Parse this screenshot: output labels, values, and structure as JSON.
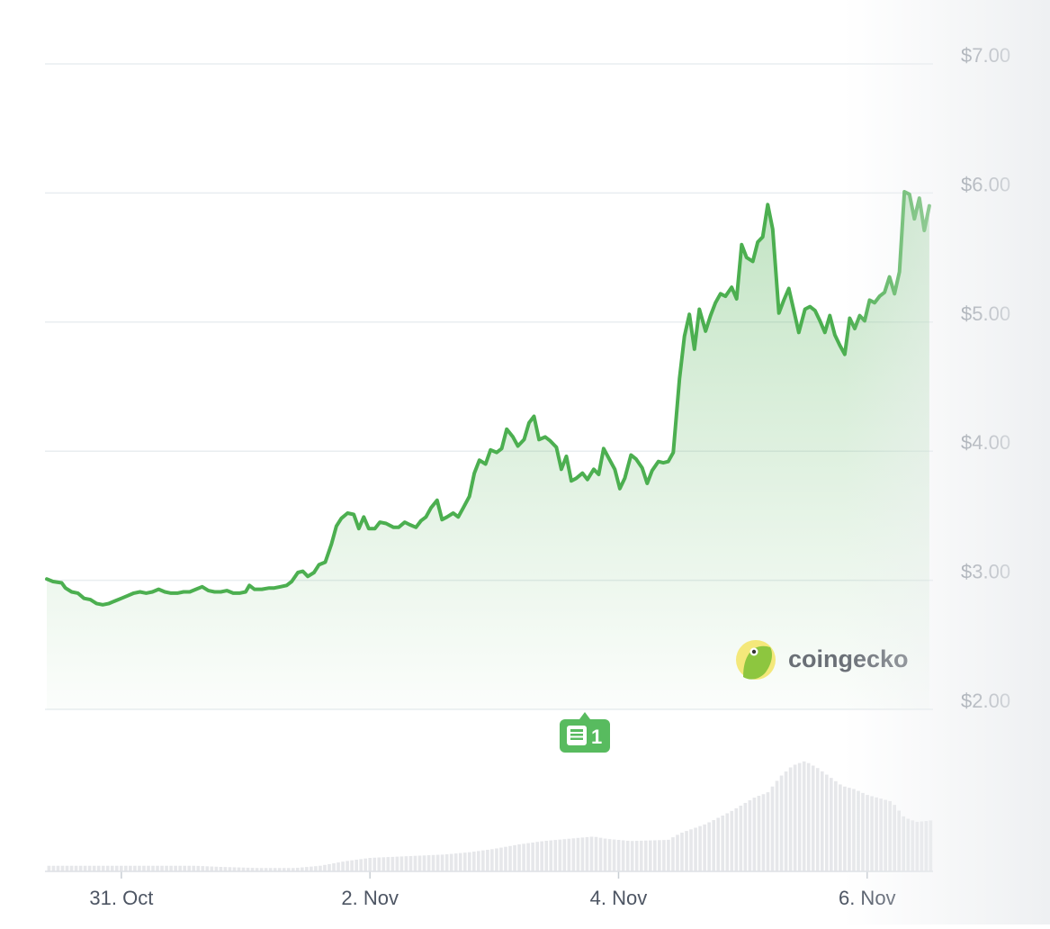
{
  "chart_data": {
    "type": "area",
    "y_range": [
      2,
      7
    ],
    "y_ticks": [
      {
        "value": 7,
        "label": "$7.00"
      },
      {
        "value": 6,
        "label": "$6.00"
      },
      {
        "value": 5,
        "label": "$5.00"
      },
      {
        "value": 4,
        "label": "$4.00"
      },
      {
        "value": 3,
        "label": "$3.00"
      },
      {
        "value": 2,
        "label": "$2.00"
      }
    ],
    "x_range": [
      0,
      7.13
    ],
    "x_ticks": [
      {
        "value": 0.6,
        "label": "31. Oct"
      },
      {
        "value": 2.6,
        "label": "2. Nov"
      },
      {
        "value": 4.6,
        "label": "4. Nov"
      },
      {
        "value": 6.6,
        "label": "6. Nov"
      }
    ],
    "grid": true,
    "line_color": "#4caf50",
    "price": [
      [
        0.0,
        3.01
      ],
      [
        0.05,
        2.99
      ],
      [
        0.12,
        2.98
      ],
      [
        0.15,
        2.94
      ],
      [
        0.2,
        2.91
      ],
      [
        0.25,
        2.9
      ],
      [
        0.3,
        2.86
      ],
      [
        0.35,
        2.85
      ],
      [
        0.4,
        2.82
      ],
      [
        0.45,
        2.81
      ],
      [
        0.5,
        2.82
      ],
      [
        0.55,
        2.84
      ],
      [
        0.6,
        2.86
      ],
      [
        0.65,
        2.88
      ],
      [
        0.7,
        2.9
      ],
      [
        0.75,
        2.91
      ],
      [
        0.8,
        2.9
      ],
      [
        0.85,
        2.91
      ],
      [
        0.9,
        2.93
      ],
      [
        0.95,
        2.91
      ],
      [
        1.0,
        2.9
      ],
      [
        1.05,
        2.9
      ],
      [
        1.1,
        2.91
      ],
      [
        1.15,
        2.91
      ],
      [
        1.2,
        2.93
      ],
      [
        1.25,
        2.95
      ],
      [
        1.3,
        2.92
      ],
      [
        1.35,
        2.91
      ],
      [
        1.4,
        2.91
      ],
      [
        1.45,
        2.92
      ],
      [
        1.5,
        2.9
      ],
      [
        1.55,
        2.9
      ],
      [
        1.6,
        2.91
      ],
      [
        1.63,
        2.96
      ],
      [
        1.67,
        2.93
      ],
      [
        1.73,
        2.93
      ],
      [
        1.79,
        2.94
      ],
      [
        1.83,
        2.94
      ],
      [
        1.88,
        2.95
      ],
      [
        1.93,
        2.96
      ],
      [
        1.97,
        2.99
      ],
      [
        2.02,
        3.06
      ],
      [
        2.06,
        3.07
      ],
      [
        2.1,
        3.03
      ],
      [
        2.15,
        3.06
      ],
      [
        2.19,
        3.12
      ],
      [
        2.24,
        3.14
      ],
      [
        2.29,
        3.28
      ],
      [
        2.33,
        3.42
      ],
      [
        2.37,
        3.48
      ],
      [
        2.42,
        3.52
      ],
      [
        2.47,
        3.51
      ],
      [
        2.51,
        3.4
      ],
      [
        2.55,
        3.49
      ],
      [
        2.59,
        3.4
      ],
      [
        2.64,
        3.4
      ],
      [
        2.68,
        3.45
      ],
      [
        2.73,
        3.44
      ],
      [
        2.79,
        3.41
      ],
      [
        2.83,
        3.41
      ],
      [
        2.88,
        3.45
      ],
      [
        2.92,
        3.43
      ],
      [
        2.97,
        3.41
      ],
      [
        3.01,
        3.46
      ],
      [
        3.05,
        3.49
      ],
      [
        3.09,
        3.56
      ],
      [
        3.14,
        3.62
      ],
      [
        3.18,
        3.47
      ],
      [
        3.22,
        3.49
      ],
      [
        3.27,
        3.52
      ],
      [
        3.31,
        3.49
      ],
      [
        3.35,
        3.56
      ],
      [
        3.4,
        3.65
      ],
      [
        3.44,
        3.83
      ],
      [
        3.48,
        3.93
      ],
      [
        3.53,
        3.9
      ],
      [
        3.57,
        4.01
      ],
      [
        3.62,
        3.99
      ],
      [
        3.66,
        4.02
      ],
      [
        3.7,
        4.17
      ],
      [
        3.75,
        4.11
      ],
      [
        3.79,
        4.04
      ],
      [
        3.84,
        4.09
      ],
      [
        3.88,
        4.22
      ],
      [
        3.92,
        4.27
      ],
      [
        3.96,
        4.09
      ],
      [
        4.01,
        4.11
      ],
      [
        4.05,
        4.08
      ],
      [
        4.1,
        4.03
      ],
      [
        4.14,
        3.86
      ],
      [
        4.18,
        3.96
      ],
      [
        4.22,
        3.77
      ],
      [
        4.26,
        3.79
      ],
      [
        4.31,
        3.83
      ],
      [
        4.35,
        3.78
      ],
      [
        4.4,
        3.86
      ],
      [
        4.44,
        3.82
      ],
      [
        4.48,
        4.02
      ],
      [
        4.53,
        3.93
      ],
      [
        4.57,
        3.86
      ],
      [
        4.61,
        3.71
      ],
      [
        4.65,
        3.79
      ],
      [
        4.7,
        3.97
      ],
      [
        4.74,
        3.94
      ],
      [
        4.79,
        3.87
      ],
      [
        4.83,
        3.75
      ],
      [
        4.87,
        3.85
      ],
      [
        4.92,
        3.92
      ],
      [
        4.96,
        3.91
      ],
      [
        5.0,
        3.92
      ],
      [
        5.04,
        3.99
      ],
      [
        5.09,
        4.56
      ],
      [
        5.13,
        4.89
      ],
      [
        5.17,
        5.06
      ],
      [
        5.21,
        4.79
      ],
      [
        5.25,
        5.1
      ],
      [
        5.3,
        4.93
      ],
      [
        5.34,
        5.05
      ],
      [
        5.38,
        5.15
      ],
      [
        5.42,
        5.22
      ],
      [
        5.46,
        5.2
      ],
      [
        5.51,
        5.27
      ],
      [
        5.55,
        5.18
      ],
      [
        5.59,
        5.6
      ],
      [
        5.63,
        5.5
      ],
      [
        5.68,
        5.47
      ],
      [
        5.72,
        5.62
      ],
      [
        5.76,
        5.66
      ],
      [
        5.8,
        5.91
      ],
      [
        5.84,
        5.72
      ],
      [
        5.89,
        5.07
      ],
      [
        5.93,
        5.17
      ],
      [
        5.97,
        5.26
      ],
      [
        6.01,
        5.09
      ],
      [
        6.05,
        4.92
      ],
      [
        6.1,
        5.1
      ],
      [
        6.14,
        5.12
      ],
      [
        6.18,
        5.09
      ],
      [
        6.22,
        5.01
      ],
      [
        6.26,
        4.92
      ],
      [
        6.3,
        5.05
      ],
      [
        6.34,
        4.9
      ],
      [
        6.38,
        4.82
      ],
      [
        6.42,
        4.75
      ],
      [
        6.46,
        5.03
      ],
      [
        6.5,
        4.95
      ],
      [
        6.54,
        5.05
      ],
      [
        6.58,
        5.01
      ],
      [
        6.62,
        5.17
      ],
      [
        6.66,
        5.15
      ],
      [
        6.7,
        5.2
      ],
      [
        6.74,
        5.23
      ],
      [
        6.78,
        5.35
      ],
      [
        6.82,
        5.22
      ],
      [
        6.86,
        5.39
      ],
      [
        6.9,
        6.01
      ],
      [
        6.94,
        5.99
      ],
      [
        6.98,
        5.8
      ],
      [
        7.02,
        5.96
      ],
      [
        7.06,
        5.71
      ],
      [
        7.1,
        5.9
      ],
      [
        7.14,
        6.03
      ],
      [
        7.18,
        5.7
      ],
      [
        7.22,
        5.99
      ],
      [
        7.26,
        6.16
      ],
      [
        7.3,
        5.88
      ]
    ],
    "volume": [
      [
        0.0,
        0.05
      ],
      [
        0.3,
        0.05
      ],
      [
        0.6,
        0.05
      ],
      [
        0.9,
        0.05
      ],
      [
        1.2,
        0.05
      ],
      [
        1.4,
        0.04
      ],
      [
        1.7,
        0.03
      ],
      [
        2.0,
        0.03
      ],
      [
        2.2,
        0.05
      ],
      [
        2.4,
        0.09
      ],
      [
        2.6,
        0.12
      ],
      [
        2.8,
        0.13
      ],
      [
        3.0,
        0.14
      ],
      [
        3.2,
        0.15
      ],
      [
        3.4,
        0.17
      ],
      [
        3.6,
        0.2
      ],
      [
        3.8,
        0.24
      ],
      [
        4.0,
        0.27
      ],
      [
        4.2,
        0.29
      ],
      [
        4.4,
        0.31
      ],
      [
        4.5,
        0.29
      ],
      [
        4.7,
        0.27
      ],
      [
        5.0,
        0.28
      ],
      [
        5.1,
        0.34
      ],
      [
        5.3,
        0.42
      ],
      [
        5.5,
        0.53
      ],
      [
        5.7,
        0.66
      ],
      [
        5.8,
        0.7
      ],
      [
        5.9,
        0.84
      ],
      [
        6.0,
        0.94
      ],
      [
        6.1,
        0.98
      ],
      [
        6.2,
        0.92
      ],
      [
        6.3,
        0.84
      ],
      [
        6.4,
        0.76
      ],
      [
        6.5,
        0.73
      ],
      [
        6.6,
        0.68
      ],
      [
        6.8,
        0.62
      ],
      [
        6.9,
        0.48
      ],
      [
        7.0,
        0.44
      ],
      [
        7.1,
        0.45
      ],
      [
        7.2,
        0.47
      ],
      [
        7.3,
        0.5
      ]
    ]
  },
  "news_badge": {
    "count": "1",
    "icon": "newspaper-icon"
  },
  "branding": {
    "name": "coingecko",
    "logo": "gecko-logo-icon"
  }
}
